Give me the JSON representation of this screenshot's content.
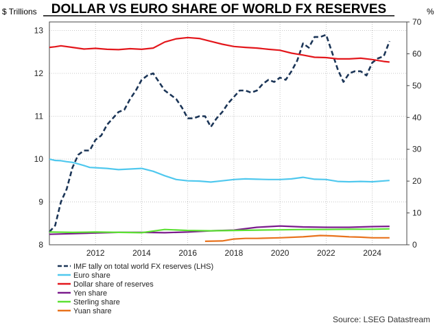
{
  "chart_data": {
    "type": "line",
    "title": "DOLLAR VS EURO SHARE OF WORLD FX RESERVES",
    "ylabel_left": "$ Trillions",
    "ylabel_right": "%",
    "source": "Source: LSEG Datastream",
    "x_ticks": [
      "2012",
      "2014",
      "2016",
      "2018",
      "2020",
      "2022",
      "2024"
    ],
    "x_tick_values": [
      2012,
      2014,
      2016,
      2018,
      2020,
      2022,
      2024
    ],
    "xlim": [
      2010.0,
      2025.5
    ],
    "y_left_ticks": [
      "8",
      "9",
      "10",
      "11",
      "12",
      "13"
    ],
    "y_left_lim": [
      8,
      13.2
    ],
    "y_right_ticks": [
      "0",
      "10",
      "20",
      "30",
      "40",
      "50",
      "60",
      "70"
    ],
    "y_right_lim": [
      0,
      70
    ],
    "series": [
      {
        "name": "IMF tally on total world FX reserves (LHS)",
        "axis": "left",
        "color": "#1b3557",
        "dash": true,
        "points": [
          [
            2010.0,
            8.3
          ],
          [
            2010.25,
            8.45
          ],
          [
            2010.5,
            9.0
          ],
          [
            2010.75,
            9.3
          ],
          [
            2011.0,
            9.8
          ],
          [
            2011.25,
            10.1
          ],
          [
            2011.5,
            10.2
          ],
          [
            2011.75,
            10.2
          ],
          [
            2012.0,
            10.45
          ],
          [
            2012.25,
            10.55
          ],
          [
            2012.5,
            10.8
          ],
          [
            2012.75,
            10.95
          ],
          [
            2013.0,
            11.1
          ],
          [
            2013.25,
            11.15
          ],
          [
            2013.5,
            11.4
          ],
          [
            2013.75,
            11.6
          ],
          [
            2014.0,
            11.85
          ],
          [
            2014.25,
            11.95
          ],
          [
            2014.5,
            12.0
          ],
          [
            2014.75,
            11.8
          ],
          [
            2015.0,
            11.6
          ],
          [
            2015.25,
            11.5
          ],
          [
            2015.5,
            11.4
          ],
          [
            2015.75,
            11.2
          ],
          [
            2016.0,
            10.95
          ],
          [
            2016.25,
            10.95
          ],
          [
            2016.5,
            11.0
          ],
          [
            2016.75,
            11.0
          ],
          [
            2017.0,
            10.75
          ],
          [
            2017.25,
            10.95
          ],
          [
            2017.5,
            11.1
          ],
          [
            2017.75,
            11.3
          ],
          [
            2018.0,
            11.45
          ],
          [
            2018.25,
            11.6
          ],
          [
            2018.5,
            11.6
          ],
          [
            2018.75,
            11.55
          ],
          [
            2019.0,
            11.6
          ],
          [
            2019.25,
            11.75
          ],
          [
            2019.5,
            11.85
          ],
          [
            2019.75,
            11.8
          ],
          [
            2020.0,
            11.9
          ],
          [
            2020.25,
            11.85
          ],
          [
            2020.5,
            12.05
          ],
          [
            2020.75,
            12.3
          ],
          [
            2021.0,
            12.7
          ],
          [
            2021.25,
            12.6
          ],
          [
            2021.5,
            12.85
          ],
          [
            2021.75,
            12.85
          ],
          [
            2022.0,
            12.9
          ],
          [
            2022.25,
            12.5
          ],
          [
            2022.5,
            12.1
          ],
          [
            2022.75,
            11.8
          ],
          [
            2023.0,
            12.0
          ],
          [
            2023.25,
            12.05
          ],
          [
            2023.5,
            12.05
          ],
          [
            2023.75,
            11.95
          ],
          [
            2024.0,
            12.25
          ],
          [
            2024.25,
            12.35
          ],
          [
            2024.5,
            12.4
          ],
          [
            2024.75,
            12.75
          ]
        ]
      },
      {
        "name": "Euro share",
        "axis": "right",
        "color": "#4fc8ee",
        "dash": false,
        "points": [
          [
            2010.0,
            26.9
          ],
          [
            2010.25,
            26.5
          ],
          [
            2010.5,
            26.4
          ],
          [
            2010.75,
            26.1
          ],
          [
            2011.0,
            25.9
          ],
          [
            2011.25,
            25.4
          ],
          [
            2011.5,
            24.9
          ],
          [
            2011.75,
            24.3
          ],
          [
            2012.0,
            24.2
          ],
          [
            2012.5,
            24.0
          ],
          [
            2013.0,
            23.6
          ],
          [
            2013.5,
            23.8
          ],
          [
            2014.0,
            24.0
          ],
          [
            2014.5,
            23.1
          ],
          [
            2015.0,
            21.7
          ],
          [
            2015.5,
            20.5
          ],
          [
            2016.0,
            20.1
          ],
          [
            2016.5,
            20.0
          ],
          [
            2017.0,
            19.7
          ],
          [
            2017.5,
            20.1
          ],
          [
            2018.0,
            20.5
          ],
          [
            2018.5,
            20.7
          ],
          [
            2019.0,
            20.6
          ],
          [
            2019.5,
            20.5
          ],
          [
            2020.0,
            20.5
          ],
          [
            2020.5,
            20.7
          ],
          [
            2021.0,
            21.2
          ],
          [
            2021.5,
            20.6
          ],
          [
            2022.0,
            20.5
          ],
          [
            2022.5,
            19.9
          ],
          [
            2023.0,
            19.8
          ],
          [
            2023.5,
            19.9
          ],
          [
            2024.0,
            19.8
          ],
          [
            2024.75,
            20.2
          ]
        ]
      },
      {
        "name": "Dollar share of reserves",
        "axis": "right",
        "color": "#e3161b",
        "dash": false,
        "points": [
          [
            2010.0,
            62.0
          ],
          [
            2010.25,
            62.2
          ],
          [
            2010.5,
            62.5
          ],
          [
            2011.0,
            62.0
          ],
          [
            2011.5,
            61.5
          ],
          [
            2012.0,
            61.7
          ],
          [
            2012.5,
            61.4
          ],
          [
            2013.0,
            61.3
          ],
          [
            2013.5,
            61.6
          ],
          [
            2014.0,
            61.4
          ],
          [
            2014.5,
            61.8
          ],
          [
            2015.0,
            63.7
          ],
          [
            2015.5,
            64.7
          ],
          [
            2016.0,
            65.1
          ],
          [
            2016.5,
            64.8
          ],
          [
            2017.0,
            63.9
          ],
          [
            2017.5,
            63.0
          ],
          [
            2018.0,
            62.3
          ],
          [
            2018.5,
            62.0
          ],
          [
            2019.0,
            61.8
          ],
          [
            2019.5,
            61.4
          ],
          [
            2020.0,
            61.1
          ],
          [
            2020.5,
            60.2
          ],
          [
            2021.0,
            59.6
          ],
          [
            2021.5,
            58.9
          ],
          [
            2022.0,
            58.8
          ],
          [
            2022.5,
            58.4
          ],
          [
            2023.0,
            58.4
          ],
          [
            2023.5,
            58.6
          ],
          [
            2024.0,
            58.2
          ],
          [
            2024.5,
            57.6
          ],
          [
            2024.75,
            57.4
          ]
        ]
      },
      {
        "name": "Yen share",
        "axis": "right",
        "color": "#7a1a8c",
        "dash": false,
        "points": [
          [
            2010.0,
            3.3
          ],
          [
            2011.0,
            3.5
          ],
          [
            2012.0,
            3.7
          ],
          [
            2013.0,
            3.9
          ],
          [
            2014.0,
            3.9
          ],
          [
            2015.0,
            3.8
          ],
          [
            2016.0,
            4.0
          ],
          [
            2017.0,
            4.4
          ],
          [
            2018.0,
            4.6
          ],
          [
            2019.0,
            5.5
          ],
          [
            2020.0,
            5.9
          ],
          [
            2021.0,
            5.6
          ],
          [
            2022.0,
            5.5
          ],
          [
            2023.0,
            5.5
          ],
          [
            2024.0,
            5.7
          ],
          [
            2024.75,
            5.8
          ]
        ]
      },
      {
        "name": "Sterling share",
        "axis": "right",
        "color": "#5be032",
        "dash": false,
        "points": [
          [
            2010.0,
            4.0
          ],
          [
            2011.0,
            3.9
          ],
          [
            2012.0,
            4.0
          ],
          [
            2013.0,
            3.9
          ],
          [
            2014.0,
            3.8
          ],
          [
            2015.0,
            4.8
          ],
          [
            2016.0,
            4.5
          ],
          [
            2017.0,
            4.4
          ],
          [
            2018.0,
            4.5
          ],
          [
            2019.0,
            4.6
          ],
          [
            2020.0,
            4.7
          ],
          [
            2021.0,
            4.8
          ],
          [
            2022.0,
            4.8
          ],
          [
            2023.0,
            4.9
          ],
          [
            2024.0,
            4.9
          ],
          [
            2024.75,
            5.0
          ]
        ]
      },
      {
        "name": "Yuan share",
        "axis": "right",
        "color": "#e8721c",
        "dash": false,
        "points": [
          [
            2016.75,
            1.1
          ],
          [
            2017.5,
            1.2
          ],
          [
            2018.0,
            1.8
          ],
          [
            2018.5,
            2.0
          ],
          [
            2019.0,
            2.0
          ],
          [
            2020.0,
            2.2
          ],
          [
            2021.0,
            2.5
          ],
          [
            2021.75,
            2.9
          ],
          [
            2022.25,
            2.8
          ],
          [
            2023.0,
            2.5
          ],
          [
            2023.5,
            2.4
          ],
          [
            2024.0,
            2.2
          ],
          [
            2024.75,
            2.2
          ]
        ]
      }
    ]
  }
}
